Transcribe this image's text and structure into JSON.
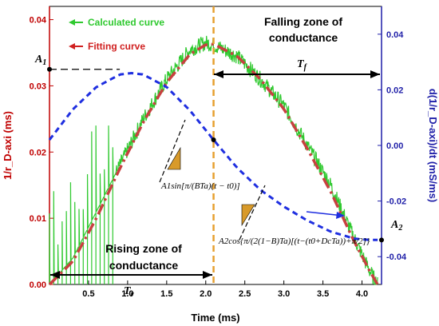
{
  "chart_data": {
    "type": "line",
    "xlabel": "Time (ms)",
    "ylabel_left": "1/r_D-axi (ms)",
    "ylabel_right": "d(1/r_D-axi)/dt  (mS/ms)",
    "xlim": [
      0.0,
      4.25
    ],
    "ylim_left": [
      0.0,
      0.042
    ],
    "ylim_right": [
      -0.05,
      0.05
    ],
    "x_ticks": [
      "0.5",
      "1.0",
      "1.5",
      "2.0",
      "2.5",
      "3.0",
      "3.5",
      "4.0"
    ],
    "x_tick_values": [
      0.5,
      1.0,
      1.5,
      2.0,
      2.5,
      3.0,
      3.5,
      4.0
    ],
    "y_ticks_left": [
      "0.00",
      "0.01",
      "0.02",
      "0.03",
      "0.04"
    ],
    "y_tick_values_left": [
      0.0,
      0.01,
      0.02,
      0.03,
      0.04
    ],
    "y_ticks_right": [
      "-0.04",
      "-0.02",
      "0.00",
      "0.02",
      "0.04"
    ],
    "y_tick_values_right": [
      -0.04,
      -0.02,
      0.0,
      0.02,
      0.04
    ],
    "series": [
      {
        "name": "Calculated curve",
        "color": "#2fc92f",
        "axis": "left",
        "style": "solid-noisy",
        "x": [
          0.0,
          0.3,
          0.6,
          0.9,
          1.2,
          1.5,
          1.8,
          2.0,
          2.1,
          2.4,
          2.7,
          3.0,
          3.3,
          3.6,
          3.9,
          4.1,
          4.2
        ],
        "y": [
          0.0,
          0.004,
          0.011,
          0.018,
          0.025,
          0.031,
          0.0355,
          0.0365,
          0.0362,
          0.0345,
          0.031,
          0.027,
          0.021,
          0.015,
          0.007,
          0.002,
          0.0
        ]
      },
      {
        "name": "Fitting curve",
        "color": "#c84040",
        "axis": "left",
        "style": "dash-dot",
        "x": [
          0.0,
          0.3,
          0.6,
          0.9,
          1.2,
          1.5,
          1.8,
          2.0,
          2.1,
          2.4,
          2.7,
          3.0,
          3.3,
          3.6,
          3.9,
          4.1,
          4.2
        ],
        "y": [
          0.0,
          0.0035,
          0.01,
          0.0175,
          0.0245,
          0.0305,
          0.0348,
          0.0362,
          0.0363,
          0.0345,
          0.031,
          0.0265,
          0.0205,
          0.014,
          0.0065,
          0.002,
          0.0
        ]
      },
      {
        "name": "d(1/r_D-axi)/dt",
        "color": "#1f2fe0",
        "axis": "right",
        "style": "dashed",
        "x": [
          0.0,
          0.3,
          0.6,
          0.9,
          1.05,
          1.2,
          1.5,
          1.8,
          2.1,
          2.4,
          2.7,
          3.0,
          3.3,
          3.6,
          3.9,
          4.1,
          4.2
        ],
        "y": [
          0.002,
          0.013,
          0.021,
          0.0255,
          0.026,
          0.0255,
          0.021,
          0.0125,
          0.002,
          -0.008,
          -0.016,
          -0.022,
          -0.027,
          -0.031,
          -0.0335,
          -0.034,
          -0.034
        ]
      }
    ],
    "legend": [
      {
        "label": "Calculated curve",
        "color": "#2fc92f"
      },
      {
        "label": "Fitting curve",
        "color": "#d02020"
      }
    ],
    "annotations": {
      "falling_zone": [
        "Falling zone of",
        "conductance"
      ],
      "rising_zone": [
        "Rising zone of",
        "conductance"
      ],
      "T_f": "T",
      "T_f_sub": "f",
      "T_r": "T",
      "T_r_sub": "r",
      "A1": "A",
      "A1_sub": "1",
      "A2": "A",
      "A2_sub": "2",
      "formula_rise": "A1sin[π/(BTa)(t − t0)]",
      "formula_fall": "A2cos{π/(2(1−B)Ta)[(t−(t0+DcTa))+π/2]}"
    },
    "vertical_marker_x": 2.1,
    "A1_y_left": 0.0325,
    "A2_y_right": -0.034
  }
}
